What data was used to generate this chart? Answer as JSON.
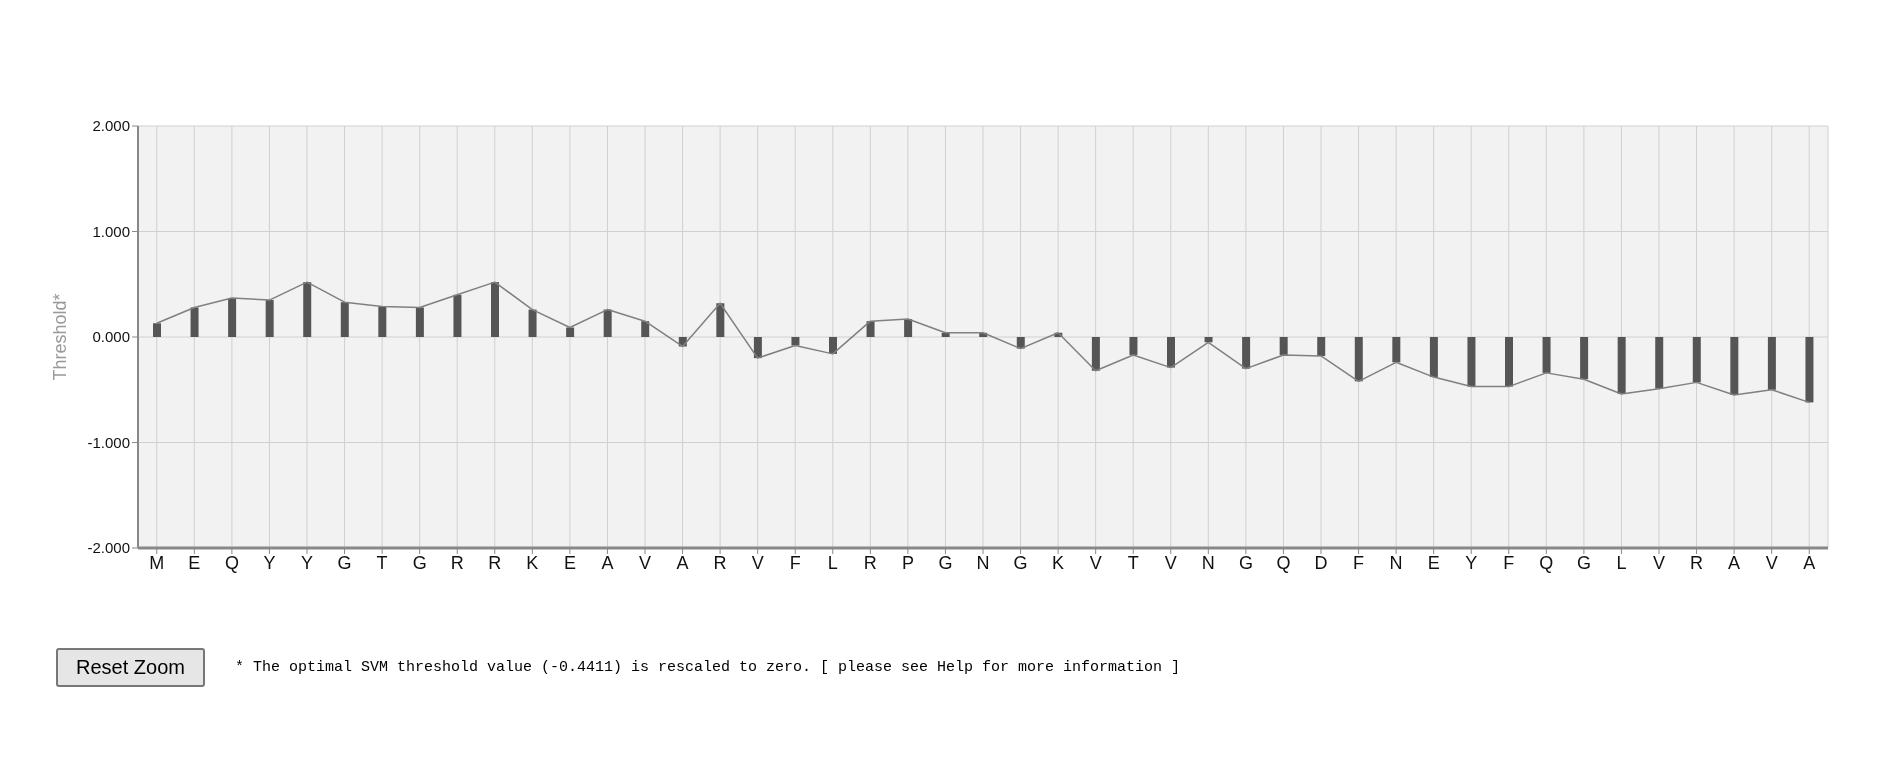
{
  "chart_data": {
    "type": "bar",
    "ylabel": "Threshold*",
    "categories": [
      "M",
      "E",
      "Q",
      "Y",
      "Y",
      "G",
      "T",
      "G",
      "R",
      "R",
      "K",
      "E",
      "A",
      "V",
      "A",
      "R",
      "V",
      "F",
      "L",
      "R",
      "P",
      "G",
      "N",
      "G",
      "K",
      "V",
      "T",
      "V",
      "N",
      "G",
      "Q",
      "D",
      "F",
      "N",
      "E",
      "Y",
      "F",
      "Q",
      "G",
      "L",
      "V",
      "R",
      "A",
      "V",
      "A"
    ],
    "series": [
      {
        "color": "#555555",
        "values": [
          0.13,
          0.28,
          0.37,
          0.35,
          0.52,
          0.33,
          0.29,
          0.28,
          0.4,
          0.52,
          0.26,
          0.09,
          0.26,
          0.15,
          -0.09,
          0.32,
          -0.2,
          -0.08,
          -0.16,
          0.15,
          0.17,
          0.04,
          0.04,
          -0.11,
          0.04,
          -0.32,
          -0.17,
          -0.29,
          -0.05,
          -0.3,
          -0.17,
          -0.18,
          -0.42,
          -0.24,
          -0.38,
          -0.47,
          -0.47,
          -0.34,
          -0.4,
          -0.54,
          -0.49,
          -0.43,
          -0.55,
          -0.5,
          -0.62
        ]
      },
      {
        "type": "line",
        "color": "#808080",
        "values": [
          0.13,
          0.28,
          0.37,
          0.35,
          0.52,
          0.33,
          0.29,
          0.28,
          0.4,
          0.52,
          0.26,
          0.09,
          0.26,
          0.15,
          -0.09,
          0.32,
          -0.2,
          -0.08,
          -0.16,
          0.15,
          0.17,
          0.04,
          0.04,
          -0.11,
          0.04,
          -0.32,
          -0.17,
          -0.29,
          -0.05,
          -0.3,
          -0.17,
          -0.18,
          -0.42,
          -0.24,
          -0.38,
          -0.47,
          -0.47,
          -0.34,
          -0.4,
          -0.54,
          -0.49,
          -0.43,
          -0.55,
          -0.5,
          -0.62
        ]
      }
    ],
    "ylim": [
      -2,
      2
    ],
    "yticks": [
      {
        "value": -2,
        "label": "-2.000"
      },
      {
        "value": -1,
        "label": "-1.000"
      },
      {
        "value": 0,
        "label": "0.000"
      },
      {
        "value": 1,
        "label": "1.000"
      },
      {
        "value": 2,
        "label": "2.000"
      }
    ],
    "grid": true,
    "legend": false,
    "marker": "none",
    "line_style": "solid",
    "annotations": [
      "Reset Zoom",
      "* The optimal SVM threshold value (-0.4411) is rescaled to zero. [ please see Help for more information ]"
    ]
  }
}
